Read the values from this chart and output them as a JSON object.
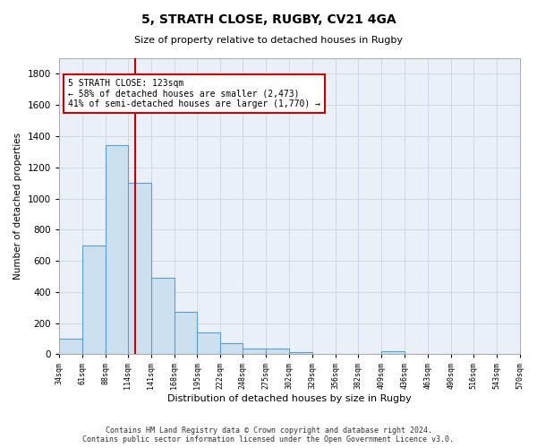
{
  "title1": "5, STRATH CLOSE, RUGBY, CV21 4GA",
  "title2": "Size of property relative to detached houses in Rugby",
  "xlabel": "Distribution of detached houses by size in Rugby",
  "ylabel": "Number of detached properties",
  "footer": "Contains HM Land Registry data © Crown copyright and database right 2024.\nContains public sector information licensed under the Open Government Licence v3.0.",
  "annotation_line1": "5 STRATH CLOSE: 123sqm",
  "annotation_line2": "← 58% of detached houses are smaller (2,473)",
  "annotation_line3": "41% of semi-detached houses are larger (1,770) →",
  "property_size": 123,
  "bin_edges": [
    34,
    61,
    88,
    114,
    141,
    168,
    195,
    222,
    248,
    275,
    302,
    329,
    356,
    382,
    409,
    436,
    463,
    490,
    516,
    543,
    570
  ],
  "bar_heights": [
    100,
    700,
    1340,
    1100,
    490,
    270,
    140,
    70,
    35,
    35,
    15,
    0,
    0,
    0,
    20,
    0,
    0,
    0,
    0,
    0
  ],
  "bar_color": "#cce0f0",
  "bar_edge_color": "#5a9fd4",
  "red_line_color": "#cc0000",
  "annotation_box_color": "#cc0000",
  "background_color": "#ffffff",
  "grid_color": "#d0d8e8",
  "ax_background": "#eaf0f8",
  "ylim": [
    0,
    1900
  ],
  "yticks": [
    0,
    200,
    400,
    600,
    800,
    1000,
    1200,
    1400,
    1600,
    1800
  ]
}
